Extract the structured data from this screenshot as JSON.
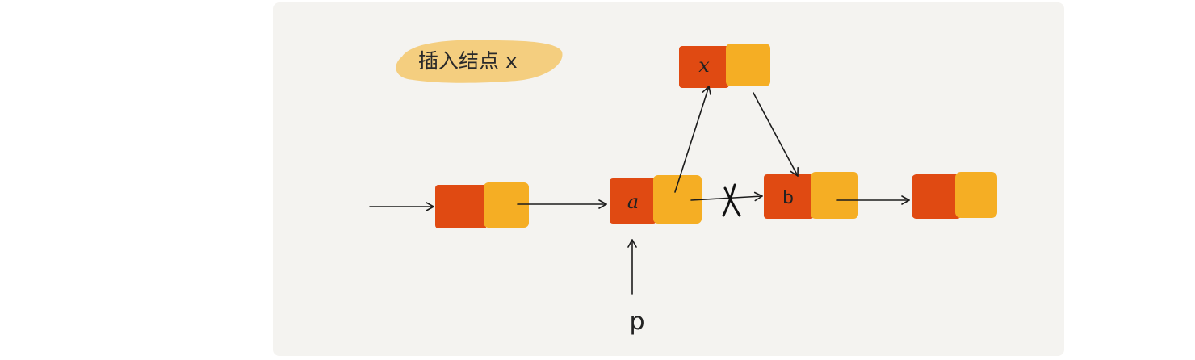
{
  "title": "插入结点 x",
  "colors": {
    "card_background": "#f4f3f0",
    "node_data": "#e04a12",
    "node_next": "#f5ae24",
    "title_highlight": "#f3c76b"
  },
  "nodes": [
    {
      "id": "n1",
      "label": ""
    },
    {
      "id": "a",
      "label": "a"
    },
    {
      "id": "x",
      "label": "x"
    },
    {
      "id": "b",
      "label": "b"
    },
    {
      "id": "n4",
      "label": ""
    }
  ],
  "edges": [
    {
      "from": "head",
      "to": "n1"
    },
    {
      "from": "n1",
      "to": "a"
    },
    {
      "from": "a",
      "to": "x"
    },
    {
      "from": "x",
      "to": "b"
    },
    {
      "from": "a",
      "to": "b",
      "crossed_out": true
    },
    {
      "from": "b",
      "to": "n4"
    }
  ],
  "pointer": {
    "label": "p",
    "target": "a"
  }
}
